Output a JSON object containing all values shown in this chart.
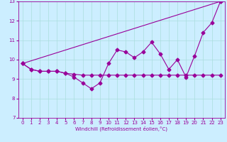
{
  "xlabel": "Windchill (Refroidissement éolien,°C)",
  "bg_color": "#cceeff",
  "grid_color": "#aadddd",
  "line_color": "#990099",
  "xlim": [
    -0.5,
    23.5
  ],
  "ylim": [
    7,
    13
  ],
  "xticks": [
    0,
    1,
    2,
    3,
    4,
    5,
    6,
    7,
    8,
    9,
    10,
    11,
    12,
    13,
    14,
    15,
    16,
    17,
    18,
    19,
    20,
    21,
    22,
    23
  ],
  "yticks": [
    7,
    8,
    9,
    10,
    11,
    12,
    13
  ],
  "line1_x": [
    0,
    1,
    2,
    3,
    4,
    5,
    6,
    7,
    8,
    9,
    10,
    11,
    12,
    13,
    14,
    15,
    16,
    17,
    18,
    19,
    20,
    21,
    22,
    23
  ],
  "line1_y": [
    9.8,
    9.5,
    9.4,
    9.4,
    9.4,
    9.3,
    9.1,
    8.8,
    8.5,
    8.8,
    9.8,
    10.5,
    10.4,
    10.1,
    10.4,
    10.9,
    10.3,
    9.5,
    10.0,
    9.1,
    10.2,
    11.4,
    11.9,
    13.0
  ],
  "line2_x": [
    0,
    1,
    2,
    3,
    4,
    5,
    6,
    7,
    8,
    9,
    10,
    11,
    12,
    13,
    14,
    15,
    16,
    17,
    18,
    19,
    20,
    21,
    22,
    23
  ],
  "line2_y": [
    9.8,
    9.5,
    9.4,
    9.4,
    9.4,
    9.3,
    9.25,
    9.2,
    9.2,
    9.2,
    9.2,
    9.2,
    9.2,
    9.2,
    9.2,
    9.2,
    9.2,
    9.2,
    9.2,
    9.2,
    9.2,
    9.2,
    9.2,
    9.2
  ],
  "line3_x": [
    0,
    23
  ],
  "line3_y": [
    9.8,
    13.0
  ],
  "marker": "D",
  "markersize": 2.5,
  "linewidth": 0.8,
  "tick_fontsize": 5,
  "xlabel_fontsize": 5
}
